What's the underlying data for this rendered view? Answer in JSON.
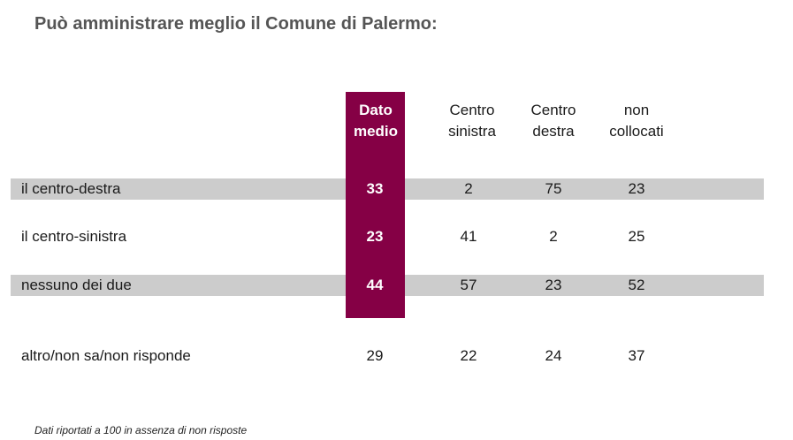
{
  "chart_data": {
    "type": "table",
    "title": "Può amministrare meglio il Comune di Palermo:",
    "columns": [
      "Dato\nmedio",
      "Centro\nsinistra",
      "Centro\ndestra",
      "non\ncollocati"
    ],
    "rows": [
      {
        "label": "il centro-destra",
        "values": [
          "33",
          "2",
          "75",
          "23"
        ],
        "shaded": true
      },
      {
        "label": "il centro-sinistra",
        "values": [
          "23",
          "41",
          "2",
          "25"
        ],
        "shaded": false
      },
      {
        "label": "nessuno dei due",
        "values": [
          "44",
          "57",
          "23",
          "52"
        ],
        "shaded": true
      },
      {
        "label": "altro/non sa/non risponde",
        "values": [
          "29",
          "22",
          "24",
          "37"
        ],
        "shaded": false
      }
    ],
    "highlight_color": "#850045",
    "band_color": "#cccccc"
  },
  "footnote": "Dati riportati a 100 in assenza di non risposte"
}
